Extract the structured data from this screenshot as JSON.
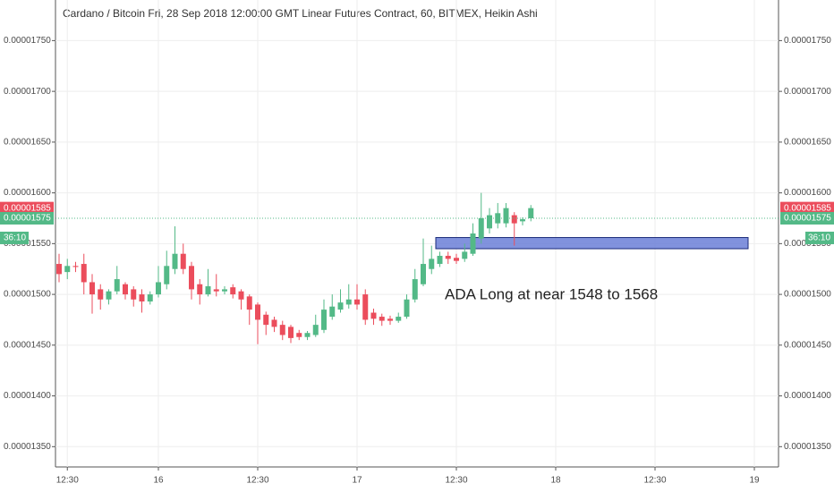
{
  "chart_data": {
    "type": "candlestick",
    "title": "Cardano / Bitcoin Fri, 28 Sep 2018 12:00:00 GMT Linear Futures Contract, 60, BITMEX, Heikin Ashi",
    "categories": [
      null,
      "12:30",
      null,
      null,
      null,
      null,
      null,
      null,
      null,
      null,
      null,
      null,
      "16",
      null,
      null,
      null,
      null,
      null,
      null,
      null,
      null,
      null,
      null,
      null,
      "12:30",
      null,
      null,
      null,
      null,
      null,
      null,
      null,
      null,
      null,
      null,
      null,
      "17",
      null,
      null,
      null,
      null,
      null,
      null,
      null,
      null,
      null,
      null,
      null,
      "12:30",
      null,
      null,
      null,
      null,
      null,
      null,
      null,
      null,
      null,
      null,
      null,
      "18",
      null,
      null,
      null,
      null,
      null,
      null,
      null,
      null,
      null,
      null,
      null,
      "12:30",
      null,
      null,
      null,
      null,
      null,
      null,
      null,
      null,
      null,
      null,
      null,
      "19",
      null,
      null
    ],
    "open": [
      1.53e-05,
      1.522e-05,
      1.528e-05,
      1.53e-05,
      1.512e-05,
      1.505e-05,
      1.495e-05,
      1.503e-05,
      1.51e-05,
      1.505e-05,
      1.5e-05,
      1.493e-05,
      1.5e-05,
      1.51e-05,
      1.525e-05,
      1.54e-05,
      1.528e-05,
      1.51e-05,
      1.5e-05,
      1.505e-05,
      1.503e-05,
      1.507e-05,
      1.503e-05,
      1.498e-05,
      1.49e-05,
      1.48e-05,
      1.475e-05,
      1.47e-05,
      1.468e-05,
      1.462e-05,
      1.458e-05,
      1.46e-05,
      1.465e-05,
      1.478e-05,
      1.485e-05,
      1.49e-05,
      1.495e-05,
      1.5e-05,
      1.482e-05,
      1.478e-05,
      1.476e-05,
      1.474e-05,
      1.478e-05,
      1.495e-05,
      1.51e-05,
      1.525e-05,
      1.53e-05,
      1.538e-05,
      1.536e-05,
      1.535e-05,
      1.54e-05,
      1.555e-05,
      1.565e-05,
      1.57e-05,
      1.57e-05,
      1.578e-05,
      1.572e-05,
      1.575e-05,
      null,
      null,
      null,
      null,
      null,
      null,
      null,
      null,
      null,
      null,
      null,
      null,
      null,
      null,
      null,
      null,
      null,
      null,
      null,
      null,
      null,
      null,
      null,
      null,
      null,
      null,
      null,
      null,
      null
    ],
    "high": [
      1.54e-05,
      1.535e-05,
      1.532e-05,
      1.54e-05,
      1.52e-05,
      1.51e-05,
      1.505e-05,
      1.528e-05,
      1.512e-05,
      1.508e-05,
      1.505e-05,
      1.503e-05,
      1.528e-05,
      1.543e-05,
      1.567e-05,
      1.55e-05,
      1.532e-05,
      1.515e-05,
      1.525e-05,
      1.52e-05,
      1.508e-05,
      1.51e-05,
      1.505e-05,
      1.5e-05,
      1.492e-05,
      1.483e-05,
      1.478e-05,
      1.474e-05,
      1.47e-05,
      1.465e-05,
      1.464e-05,
      1.48e-05,
      1.495e-05,
      1.5e-05,
      1.505e-05,
      1.51e-05,
      1.51e-05,
      1.505e-05,
      1.486e-05,
      1.481e-05,
      1.479e-05,
      1.482e-05,
      1.5e-05,
      1.525e-05,
      1.555e-05,
      1.548e-05,
      1.542e-05,
      1.542e-05,
      1.54e-05,
      1.55e-05,
      1.57e-05,
      1.6e-05,
      1.585e-05,
      1.59e-05,
      1.59e-05,
      1.581e-05,
      1.576e-05,
      1.588e-05,
      null,
      null,
      null,
      null,
      null,
      null,
      null,
      null,
      null,
      null,
      null,
      null,
      null,
      null,
      null,
      null,
      null,
      null,
      null,
      null,
      null,
      null,
      null,
      null,
      null,
      null,
      null,
      null,
      null
    ],
    "low": [
      1.512e-05,
      1.515e-05,
      1.522e-05,
      1.5e-05,
      1.481e-05,
      1.485e-05,
      1.49e-05,
      1.5e-05,
      1.495e-05,
      1.488e-05,
      1.482e-05,
      1.49e-05,
      1.497e-05,
      1.505e-05,
      1.52e-05,
      1.52e-05,
      1.495e-05,
      1.49e-05,
      1.498e-05,
      1.498e-05,
      1.5e-05,
      1.496e-05,
      1.485e-05,
      1.47e-05,
      1.451e-05,
      1.46e-05,
      1.463e-05,
      1.455e-05,
      1.452e-05,
      1.455e-05,
      1.455e-05,
      1.458e-05,
      1.462e-05,
      1.475e-05,
      1.482e-05,
      1.486e-05,
      1.485e-05,
      1.47e-05,
      1.47e-05,
      1.469e-05,
      1.47e-05,
      1.472e-05,
      1.476e-05,
      1.492e-05,
      1.508e-05,
      1.52e-05,
      1.527e-05,
      1.53e-05,
      1.53e-05,
      1.532e-05,
      1.538e-05,
      1.55e-05,
      1.56e-05,
      1.565e-05,
      1.566e-05,
      1.548e-05,
      1.568e-05,
      1.572e-05,
      null,
      null,
      null,
      null,
      null,
      null,
      null,
      null,
      null,
      null,
      null,
      null,
      null,
      null,
      null,
      null,
      null,
      null,
      null,
      null,
      null,
      null,
      null,
      null,
      null,
      null,
      null,
      null,
      null
    ],
    "close": [
      1.52e-05,
      1.528e-05,
      1.527e-05,
      1.512e-05,
      1.5e-05,
      1.495e-05,
      1.503e-05,
      1.515e-05,
      1.5e-05,
      1.495e-05,
      1.493e-05,
      1.5e-05,
      1.512e-05,
      1.528e-05,
      1.54e-05,
      1.525e-05,
      1.505e-05,
      1.5e-05,
      1.508e-05,
      1.503e-05,
      1.505e-05,
      1.5e-05,
      1.495e-05,
      1.485e-05,
      1.475e-05,
      1.47e-05,
      1.468e-05,
      1.46e-05,
      1.457e-05,
      1.458e-05,
      1.462e-05,
      1.47e-05,
      1.485e-05,
      1.488e-05,
      1.492e-05,
      1.495e-05,
      1.49e-05,
      1.475e-05,
      1.476e-05,
      1.474e-05,
      1.474e-05,
      1.478e-05,
      1.495e-05,
      1.515e-05,
      1.53e-05,
      1.535e-05,
      1.538e-05,
      1.535e-05,
      1.533e-05,
      1.542e-05,
      1.56e-05,
      1.575e-05,
      1.578e-05,
      1.58e-05,
      1.585e-05,
      1.57e-05,
      1.574e-05,
      1.585e-05,
      null,
      null,
      null,
      null,
      null,
      null,
      null,
      null,
      null,
      null,
      null,
      null,
      null,
      null,
      null,
      null,
      null,
      null,
      null,
      null,
      null,
      null,
      null,
      null,
      null,
      null,
      null,
      null,
      null
    ],
    "up_color": "#53b987",
    "down_color": "#eb4d5c",
    "ylim": [
      1.33e-05,
      1.79e-05
    ],
    "yticks": [
      {
        "value": 1.35e-05,
        "label": "0.00001350"
      },
      {
        "value": 1.4e-05,
        "label": "0.00001400"
      },
      {
        "value": 1.45e-05,
        "label": "0.00001450"
      },
      {
        "value": 1.5e-05,
        "label": "0.00001500"
      },
      {
        "value": 1.55e-05,
        "label": "0.00001550"
      },
      {
        "value": 1.6e-05,
        "label": "0.00001600"
      },
      {
        "value": 1.65e-05,
        "label": "0.00001650"
      },
      {
        "value": 1.7e-05,
        "label": "0.00001700"
      },
      {
        "value": 1.75e-05,
        "label": "0.00001750"
      }
    ],
    "grid": true,
    "price_labels": [
      {
        "value": 1.585e-05,
        "color": "#eb4d5c"
      },
      {
        "value": 1.575e-05,
        "color": "#53b987"
      }
    ],
    "countdown": "36:10",
    "zone": {
      "low": 1.545e-05,
      "high": 1.556e-05,
      "color": "#6b7fd7"
    },
    "annotation": "ADA Long at near 1548 to 1568"
  }
}
